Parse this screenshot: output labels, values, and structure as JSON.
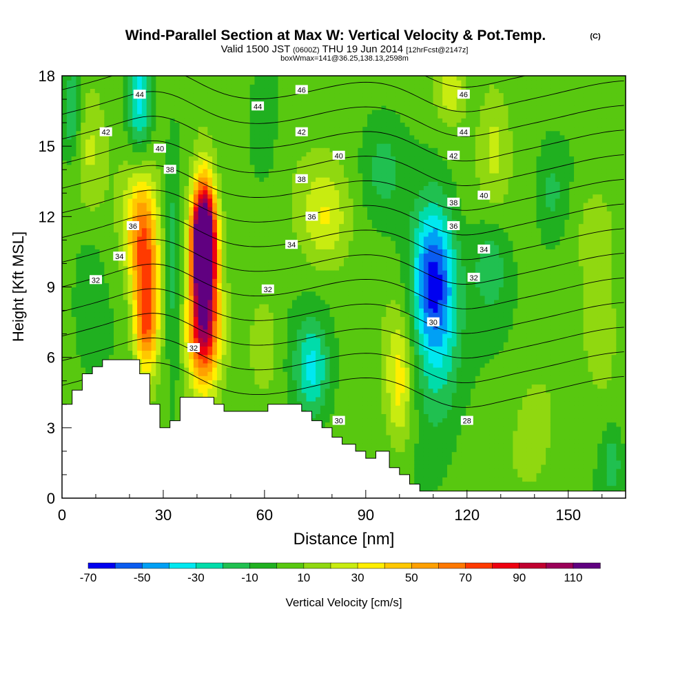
{
  "header": {
    "title": "Wind-Parallel Section at Max W: Vertical Velocity & Pot.Temp.",
    "copyright": "(C)",
    "valid_prefix": "Valid 1500 JST",
    "valid_utc": "(0600Z)",
    "valid_date": "THU 19 Jun 2014",
    "forecast": "[12hrFcst@2147z]",
    "box_info": "boxWmax=141@36.25,138.13,2598m"
  },
  "chart_data": {
    "type": "heatmap",
    "title": "Wind-Parallel Section at Max W: Vertical Velocity & Pot.Temp.",
    "xlabel": "Distance [nm]",
    "ylabel": "Height [Kft MSL]",
    "xlim": [
      0,
      167
    ],
    "ylim": [
      0,
      18
    ],
    "x_ticks": [
      "0",
      "30",
      "60",
      "90",
      "120",
      "150"
    ],
    "y_ticks": [
      "0",
      "3",
      "6",
      "9",
      "12",
      "15",
      "18"
    ],
    "colorbar": {
      "label": "Vertical Velocity [cm/s]",
      "tick_labels": [
        "-70",
        "-50",
        "-30",
        "-10",
        "10",
        "30",
        "50",
        "70",
        "90",
        "110"
      ],
      "levels": [
        -70,
        -60,
        -50,
        -40,
        -30,
        -20,
        -10,
        0,
        10,
        20,
        30,
        40,
        50,
        60,
        70,
        80,
        90,
        100,
        110
      ],
      "colors": [
        "#0000f0",
        "#0a5cf0",
        "#00a0f5",
        "#00e8f0",
        "#00dcaa",
        "#20c050",
        "#20b020",
        "#58c810",
        "#90d810",
        "#c8ec10",
        "#ffee00",
        "#ffc800",
        "#ffa000",
        "#ff7800",
        "#ff3a00",
        "#ee0010",
        "#c00030",
        "#9a0058",
        "#600080"
      ]
    },
    "vertical_velocity_cells": [
      {
        "x": 42,
        "y": 10.8,
        "sx": 2.3,
        "sy": 1.6,
        "v": 140
      },
      {
        "x": 42,
        "y": 9.2,
        "sx": 3.0,
        "sy": 3.2,
        "v": 65
      },
      {
        "x": 25,
        "y": 9.5,
        "sx": 2.8,
        "sy": 2.6,
        "v": 60
      },
      {
        "x": 22,
        "y": 11.5,
        "sx": 3.0,
        "sy": 1.8,
        "v": 30
      },
      {
        "x": 42,
        "y": 7.0,
        "sx": 3.5,
        "sy": 1.2,
        "v": 40
      },
      {
        "x": 25,
        "y": 7.2,
        "sx": 2.2,
        "sy": 1.2,
        "v": 30
      },
      {
        "x": 110,
        "y": 9.5,
        "sx": 4.5,
        "sy": 2.2,
        "v": -55
      },
      {
        "x": 111,
        "y": 6.5,
        "sx": 5.0,
        "sy": 3.0,
        "v": -25
      },
      {
        "x": 127,
        "y": 10.0,
        "sx": 4.0,
        "sy": 1.5,
        "v": -20
      },
      {
        "x": 74,
        "y": 5.5,
        "sx": 3.5,
        "sy": 1.5,
        "v": -35
      },
      {
        "x": 33,
        "y": 9.5,
        "sx": 1.8,
        "sy": 3.5,
        "v": -20
      },
      {
        "x": 23,
        "y": 17.0,
        "sx": 2.5,
        "sy": 1.8,
        "v": -40
      },
      {
        "x": 3,
        "y": 16.5,
        "sx": 2.0,
        "sy": 1.5,
        "v": -25
      },
      {
        "x": 78,
        "y": 12.0,
        "sx": 5.0,
        "sy": 1.5,
        "v": 25
      },
      {
        "x": 100,
        "y": 5.0,
        "sx": 2.8,
        "sy": 2.0,
        "v": 30
      },
      {
        "x": 115,
        "y": 17.5,
        "sx": 3.0,
        "sy": 1.0,
        "v": 25
      },
      {
        "x": 128,
        "y": 15.0,
        "sx": 3.0,
        "sy": 2.0,
        "v": 15
      },
      {
        "x": 158,
        "y": 11.5,
        "sx": 4.0,
        "sy": 1.5,
        "v": 15
      },
      {
        "x": 140,
        "y": 3.0,
        "sx": 5.0,
        "sy": 2.0,
        "v": 10
      },
      {
        "x": 60,
        "y": 6.5,
        "sx": 3.0,
        "sy": 1.5,
        "v": 15
      },
      {
        "x": 8,
        "y": 15.0,
        "sx": 3.0,
        "sy": 2.0,
        "v": 15
      },
      {
        "x": 85,
        "y": 4.5,
        "sx": 4.0,
        "sy": 2.0,
        "v": 0
      },
      {
        "x": 160,
        "y": 7.0,
        "sx": 3.0,
        "sy": 2.0,
        "v": 8
      },
      {
        "x": 95,
        "y": 14.0,
        "sx": 4.0,
        "sy": 1.5,
        "v": -15
      },
      {
        "x": 60,
        "y": 16.0,
        "sx": 3.0,
        "sy": 2.0,
        "v": -12
      },
      {
        "x": 163,
        "y": 1.5,
        "sx": 2.0,
        "sy": 1.0,
        "v": -20
      },
      {
        "x": 145,
        "y": 13.0,
        "sx": 3.0,
        "sy": 1.5,
        "v": -15
      },
      {
        "x": 8,
        "y": 9.0,
        "sx": 3.0,
        "sy": 2.0,
        "v": -10
      }
    ],
    "terrain": [
      {
        "x": 0,
        "h": 4.0
      },
      {
        "x": 3,
        "h": 4.0
      },
      {
        "x": 3,
        "h": 4.6
      },
      {
        "x": 6,
        "h": 4.6
      },
      {
        "x": 6,
        "h": 5.3
      },
      {
        "x": 9,
        "h": 5.3
      },
      {
        "x": 9,
        "h": 5.6
      },
      {
        "x": 12,
        "h": 5.6
      },
      {
        "x": 12,
        "h": 5.9
      },
      {
        "x": 23,
        "h": 5.9
      },
      {
        "x": 23,
        "h": 5.3
      },
      {
        "x": 26,
        "h": 5.3
      },
      {
        "x": 26,
        "h": 4.0
      },
      {
        "x": 29,
        "h": 4.0
      },
      {
        "x": 29,
        "h": 3.0
      },
      {
        "x": 32,
        "h": 3.0
      },
      {
        "x": 32,
        "h": 3.3
      },
      {
        "x": 35,
        "h": 3.3
      },
      {
        "x": 35,
        "h": 4.3
      },
      {
        "x": 45,
        "h": 4.3
      },
      {
        "x": 45,
        "h": 4.0
      },
      {
        "x": 48,
        "h": 4.0
      },
      {
        "x": 48,
        "h": 3.7
      },
      {
        "x": 61,
        "h": 3.7
      },
      {
        "x": 61,
        "h": 4.0
      },
      {
        "x": 71,
        "h": 4.0
      },
      {
        "x": 71,
        "h": 3.7
      },
      {
        "x": 74,
        "h": 3.7
      },
      {
        "x": 74,
        "h": 3.3
      },
      {
        "x": 77,
        "h": 3.3
      },
      {
        "x": 77,
        "h": 3.0
      },
      {
        "x": 80,
        "h": 3.0
      },
      {
        "x": 80,
        "h": 2.6
      },
      {
        "x": 83,
        "h": 2.6
      },
      {
        "x": 83,
        "h": 2.3
      },
      {
        "x": 87,
        "h": 2.3
      },
      {
        "x": 87,
        "h": 2.0
      },
      {
        "x": 90,
        "h": 2.0
      },
      {
        "x": 90,
        "h": 1.7
      },
      {
        "x": 93,
        "h": 1.7
      },
      {
        "x": 93,
        "h": 2.0
      },
      {
        "x": 97,
        "h": 2.0
      },
      {
        "x": 97,
        "h": 1.3
      },
      {
        "x": 100,
        "h": 1.3
      },
      {
        "x": 100,
        "h": 1.0
      },
      {
        "x": 103,
        "h": 1.0
      },
      {
        "x": 103,
        "h": 0.6
      },
      {
        "x": 106,
        "h": 0.6
      },
      {
        "x": 106,
        "h": 0.3
      },
      {
        "x": 109,
        "h": 0.3
      },
      {
        "x": 109,
        "h": 0.3
      },
      {
        "x": 167,
        "h": 0.3
      }
    ],
    "theta_contour_labels": [
      {
        "text": "46",
        "x": 71,
        "y": 17.4
      },
      {
        "text": "46",
        "x": 119,
        "y": 17.2
      },
      {
        "text": "44",
        "x": 23,
        "y": 17.2
      },
      {
        "text": "44",
        "x": 58,
        "y": 16.7
      },
      {
        "text": "44",
        "x": 119,
        "y": 15.6
      },
      {
        "text": "42",
        "x": 13,
        "y": 15.6
      },
      {
        "text": "42",
        "x": 71,
        "y": 15.6
      },
      {
        "text": "42",
        "x": 116,
        "y": 14.6
      },
      {
        "text": "40",
        "x": 29,
        "y": 14.9
      },
      {
        "text": "40",
        "x": 82,
        "y": 14.6
      },
      {
        "text": "40",
        "x": 125,
        "y": 12.9
      },
      {
        "text": "38",
        "x": 32,
        "y": 14.0
      },
      {
        "text": "38",
        "x": 71,
        "y": 13.6
      },
      {
        "text": "38",
        "x": 116,
        "y": 12.6
      },
      {
        "text": "36",
        "x": 21,
        "y": 11.6
      },
      {
        "text": "36",
        "x": 74,
        "y": 12.0
      },
      {
        "text": "36",
        "x": 116,
        "y": 11.6
      },
      {
        "text": "34",
        "x": 17,
        "y": 10.3
      },
      {
        "text": "34",
        "x": 68,
        "y": 10.8
      },
      {
        "text": "34",
        "x": 125,
        "y": 10.6
      },
      {
        "text": "32",
        "x": 10,
        "y": 9.3
      },
      {
        "text": "32",
        "x": 61,
        "y": 8.9
      },
      {
        "text": "32",
        "x": 122,
        "y": 9.4
      },
      {
        "text": "32",
        "x": 39,
        "y": 6.4
      },
      {
        "text": "30",
        "x": 110,
        "y": 7.5
      },
      {
        "text": "30",
        "x": 82,
        "y": 3.3
      },
      {
        "text": "28",
        "x": 120,
        "y": 3.3
      }
    ]
  }
}
